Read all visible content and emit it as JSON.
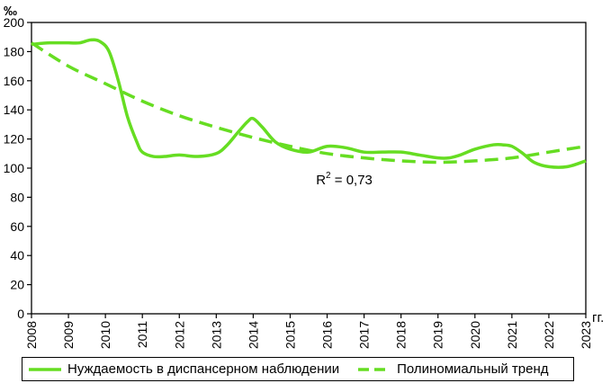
{
  "chart_data": {
    "type": "line",
    "ylabel": "‰",
    "xlabel": "гг.",
    "ylim": [
      0,
      200
    ],
    "yticks": [
      0,
      20,
      40,
      60,
      80,
      100,
      120,
      140,
      160,
      180,
      200
    ],
    "categories": [
      "2008",
      "2009",
      "2010",
      "2011",
      "2012",
      "2013",
      "2014",
      "2015",
      "2016",
      "2017",
      "2018",
      "2019",
      "2020",
      "2021",
      "2022",
      "2023"
    ],
    "series": [
      {
        "name": "Нуждаемость в диспансерном наблюдении",
        "style": "solid",
        "color": "#66dd22",
        "x": [
          2008,
          2008.5,
          2009,
          2009.3,
          2009.6,
          2009.85,
          2010.1,
          2010.35,
          2010.6,
          2010.85,
          2011,
          2011.3,
          2011.6,
          2012,
          2012.5,
          2013,
          2013.3,
          2013.6,
          2013.85,
          2014,
          2014.25,
          2014.6,
          2015,
          2015.5,
          2016,
          2016.5,
          2017,
          2017.5,
          2018,
          2018.5,
          2019,
          2019.3,
          2019.6,
          2020,
          2020.5,
          2020.75,
          2021,
          2021.3,
          2021.6,
          2022,
          2022.5,
          2023
        ],
        "y": [
          185,
          186,
          186,
          186,
          188,
          187,
          180,
          160,
          135,
          118,
          111,
          108,
          108,
          109,
          108,
          110,
          116,
          125,
          132,
          134,
          128,
          118,
          113,
          111,
          115,
          114,
          111,
          111,
          111,
          109,
          107,
          107,
          109,
          113,
          116,
          116,
          115,
          110,
          104,
          101,
          101,
          105
        ]
      },
      {
        "name": "Полиномиальный тренд",
        "style": "dashed",
        "color": "#66dd22",
        "x": [
          2008,
          2009,
          2010,
          2011,
          2012,
          2013,
          2014,
          2015,
          2016,
          2017,
          2018,
          2019,
          2020,
          2021,
          2022,
          2023
        ],
        "y": [
          186,
          170,
          158,
          146,
          136,
          128,
          121,
          115,
          110,
          107,
          105,
          104,
          105,
          107,
          111,
          115
        ]
      }
    ],
    "annotation": {
      "text": "R",
      "sup": "2",
      "suffix": " = 0,73",
      "at_x": 2015.7,
      "at_y": 89
    },
    "grid": false,
    "legend_position": "bottom"
  }
}
